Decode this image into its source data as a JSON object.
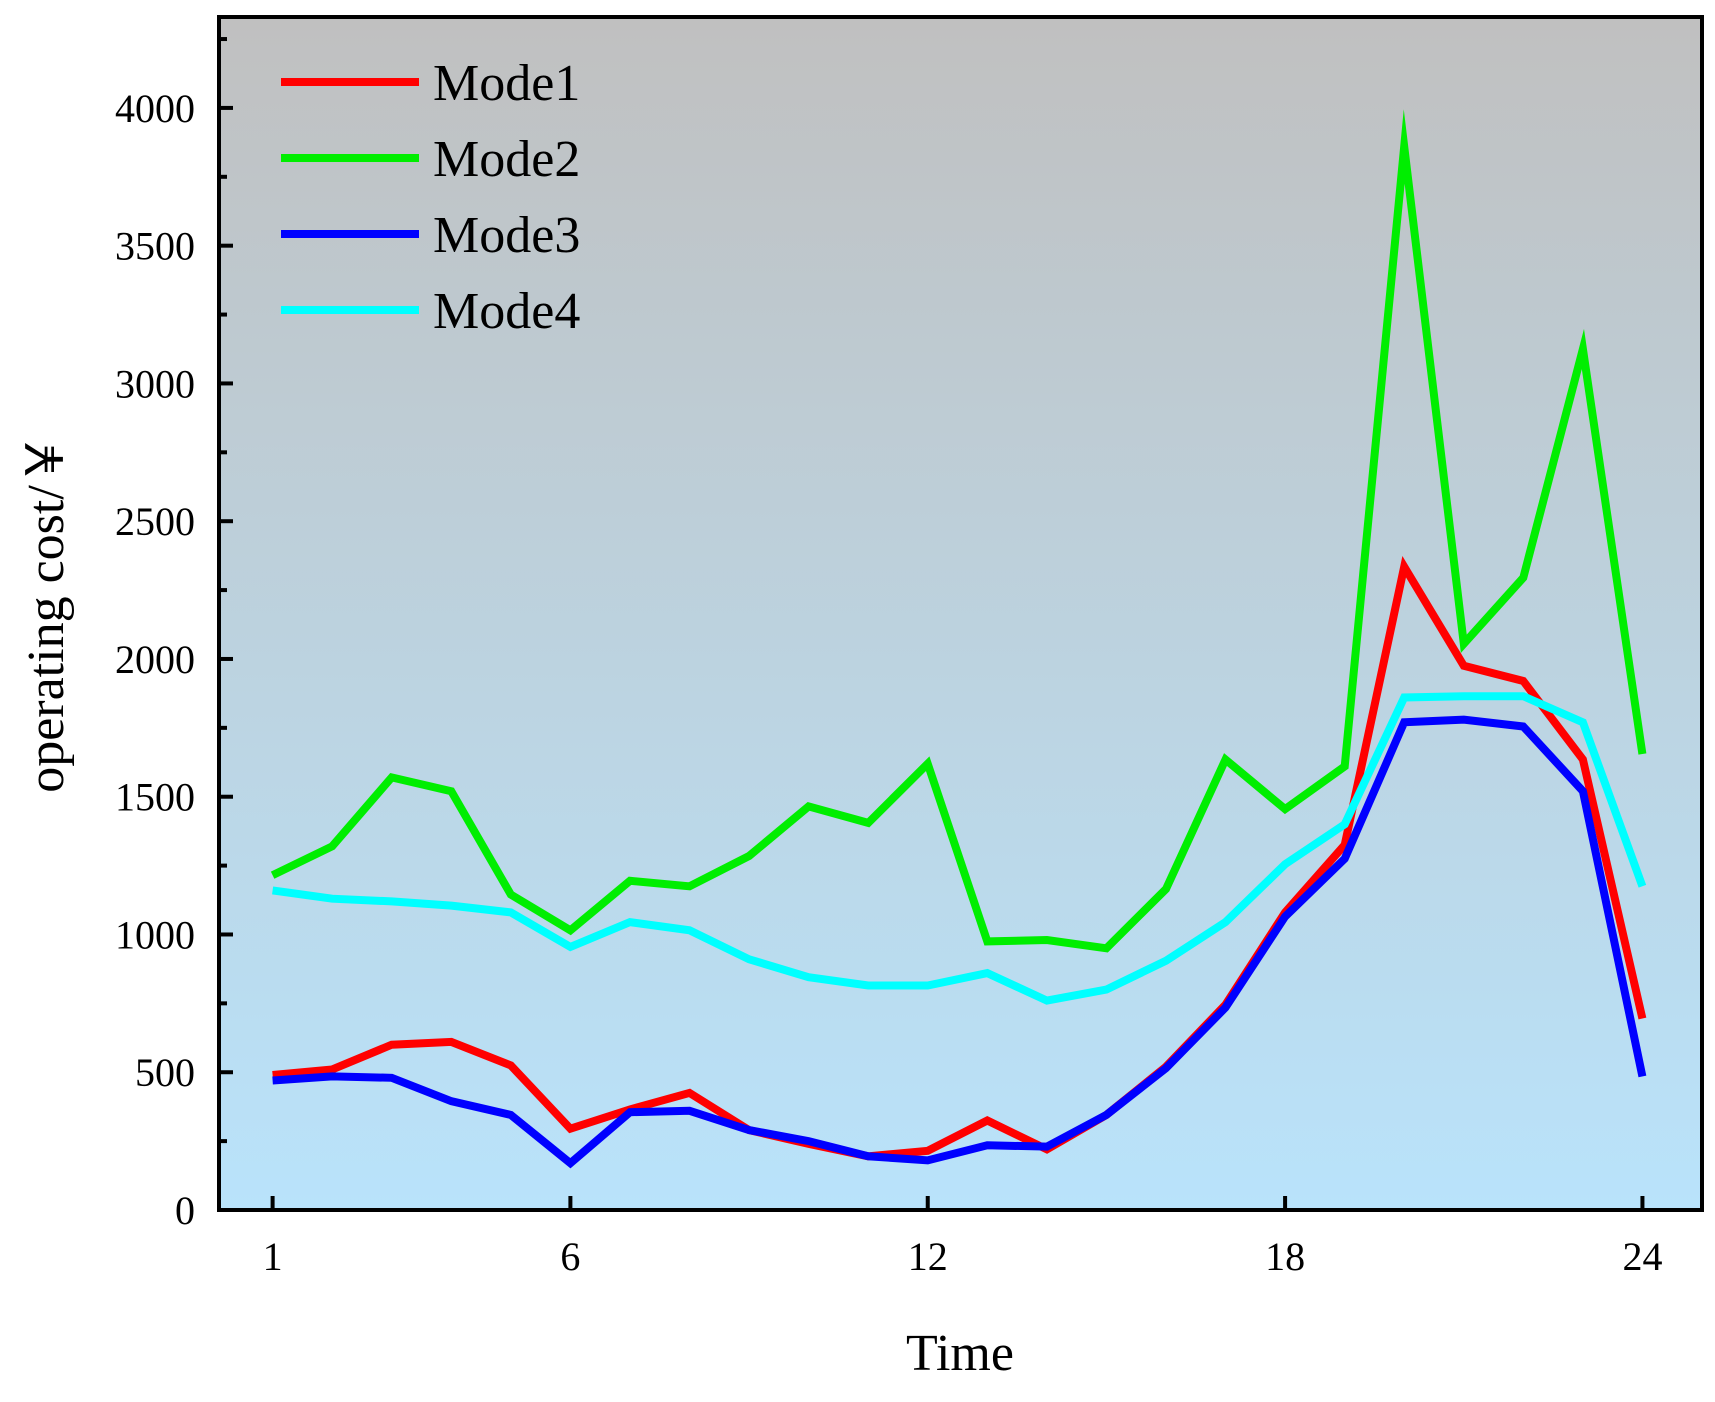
{
  "chart_data": {
    "type": "line",
    "title": "",
    "xlabel": "Time",
    "ylabel": "operating cost/￥",
    "x": [
      1,
      2,
      3,
      4,
      5,
      6,
      7,
      8,
      9,
      10,
      11,
      12,
      13,
      14,
      15,
      16,
      17,
      18,
      19,
      20,
      21,
      22,
      23,
      24
    ],
    "xticks": [
      1,
      6,
      12,
      18,
      24
    ],
    "yticks": [
      0,
      500,
      1000,
      1500,
      2000,
      2500,
      3000,
      3500,
      4000
    ],
    "xlim": [
      0.1,
      25
    ],
    "ylim": [
      0,
      4330
    ],
    "grid": false,
    "legend_position": "top-left",
    "background_gradient": [
      "#c0c0c0",
      "#b9e3fb"
    ],
    "series": [
      {
        "name": "Mode1",
        "color": "#ff0000",
        "values": [
          490,
          510,
          600,
          610,
          525,
          295,
          365,
          425,
          290,
          240,
          195,
          215,
          325,
          220,
          345,
          520,
          745,
          1080,
          1325,
          2335,
          1975,
          1920,
          1635,
          695
        ]
      },
      {
        "name": "Mode2",
        "color": "#00ee00",
        "values": [
          1215,
          1320,
          1570,
          1520,
          1145,
          1015,
          1195,
          1175,
          1285,
          1465,
          1405,
          1620,
          975,
          980,
          950,
          1165,
          1635,
          1455,
          1610,
          3860,
          2055,
          2295,
          3125,
          1655
        ]
      },
      {
        "name": "Mode3",
        "color": "#0000ff",
        "values": [
          470,
          485,
          480,
          395,
          345,
          170,
          355,
          360,
          290,
          250,
          195,
          180,
          235,
          230,
          345,
          515,
          735,
          1065,
          1275,
          1770,
          1780,
          1755,
          1520,
          485
        ]
      },
      {
        "name": "Mode4",
        "color": "#00ffff",
        "values": [
          1160,
          1130,
          1120,
          1105,
          1080,
          955,
          1045,
          1015,
          910,
          845,
          815,
          815,
          860,
          760,
          800,
          905,
          1045,
          1255,
          1400,
          1860,
          1865,
          1865,
          1770,
          1175
        ]
      }
    ]
  }
}
